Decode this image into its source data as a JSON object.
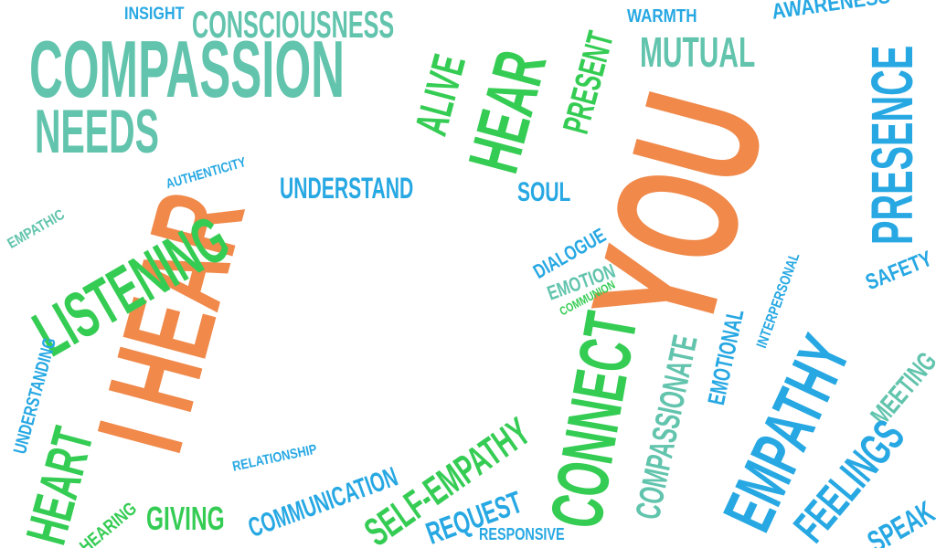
{
  "colors": {
    "orange": "#f0894a",
    "teal": "#62c4ad",
    "green": "#35cc54",
    "blue": "#27a8e3",
    "background": "#ffffff"
  },
  "words": {
    "i_hear": "I HEAR",
    "you": "YOU",
    "compassion": "COMPASSION",
    "needs": "NEEDS",
    "insight": "INSIGHT",
    "consciousness": "CONSCIOUSNESS",
    "alive": "ALIVE",
    "hear": "HEAR",
    "present": "PRESENT",
    "warmth": "WARMTH",
    "awareness": "AWARENESS",
    "mutual": "MUTUAL",
    "presence": "PRESENCE",
    "authenticity": "AUTHENTICITY",
    "understand": "UNDERSTAND",
    "empathic": "EMPATHIC",
    "listening": "LISTENING",
    "soul": "SOUL",
    "dialogue": "DIALOGUE",
    "emotion": "EMOTION",
    "communion": "COMMUNION",
    "interpersonal": "INTERPERSONAL",
    "safety": "SAFETY",
    "compassionate": "COMPASSIONATE",
    "emotional": "EMOTIONAL",
    "empathy": "EMPATHY",
    "meeting": "MEETING",
    "connect": "CONNECT",
    "understanding": "UNDERSTANDING",
    "heart": "HEART",
    "hearing": "HEARING",
    "giving": "GIVING",
    "relationship": "RELATIONSHIP",
    "communication": "COMMUNICATION",
    "self_empathy": "SELF-EMPATHY",
    "request": "REQUEST",
    "responsive": "RESPONSIVE",
    "feelings": "FEELINGS",
    "speak": "SPEAK"
  }
}
